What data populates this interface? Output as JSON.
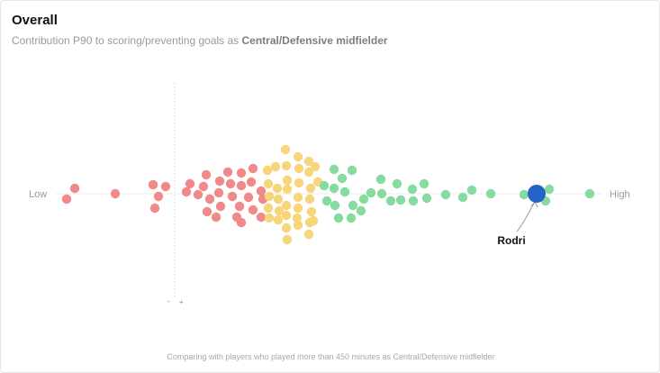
{
  "card": {
    "title": "Overall",
    "subtitle_prefix": "Contribution P90 to scoring/preventing goals as ",
    "subtitle_role": "Central/Defensive midfielder",
    "footer": "Comparing with players who played more than 450 minutes as Central/Defensive midfielder"
  },
  "chart_data": {
    "type": "scatter",
    "axis_labels": {
      "low": "Low",
      "high": "High"
    },
    "zero_marker": {
      "minus": "-",
      "plus": "+"
    },
    "colors": {
      "low": "#f08a8a",
      "mid": "#f7d57a",
      "high": "#86dba0",
      "highlight": "#2563c9"
    },
    "highlight": {
      "label": "Rodri",
      "x": 596,
      "y": 0
    },
    "series": [
      {
        "name": "low",
        "points": [
          [
            74,
            6
          ],
          [
            83,
            -6
          ],
          [
            128,
            0
          ],
          [
            170,
            -10
          ],
          [
            176,
            3
          ],
          [
            172,
            16
          ],
          [
            184,
            -8
          ],
          [
            207,
            -2
          ],
          [
            220,
            1
          ],
          [
            211,
            -11
          ],
          [
            229,
            -21
          ],
          [
            226,
            -8
          ],
          [
            233,
            6
          ],
          [
            230,
            20
          ],
          [
            244,
            -14
          ],
          [
            243,
            -1
          ],
          [
            245,
            14
          ],
          [
            240,
            26
          ],
          [
            253,
            -24
          ],
          [
            256,
            -11
          ],
          [
            258,
            3
          ],
          [
            263,
            26
          ],
          [
            268,
            -23
          ],
          [
            268,
            -9
          ],
          [
            268,
            32
          ],
          [
            266,
            14
          ],
          [
            276,
            4
          ],
          [
            281,
            -28
          ],
          [
            279,
            -13
          ],
          [
            281,
            18
          ],
          [
            290,
            -3
          ],
          [
            292,
            6
          ],
          [
            290,
            26
          ]
        ]
      },
      {
        "name": "mid",
        "points": [
          [
            297,
            -26
          ],
          [
            298,
            -11
          ],
          [
            299,
            3
          ],
          [
            298,
            16
          ],
          [
            299,
            27
          ],
          [
            308,
            -6
          ],
          [
            306,
            -30
          ],
          [
            309,
            6
          ],
          [
            310,
            19
          ],
          [
            309,
            29
          ],
          [
            317,
            -49
          ],
          [
            318,
            -31
          ],
          [
            319,
            -15
          ],
          [
            319,
            -5
          ],
          [
            318,
            13
          ],
          [
            318,
            24
          ],
          [
            318,
            38
          ],
          [
            319,
            51
          ],
          [
            331,
            -41
          ],
          [
            332,
            -28
          ],
          [
            332,
            -12
          ],
          [
            331,
            4
          ],
          [
            331,
            16
          ],
          [
            330,
            27
          ],
          [
            331,
            35
          ],
          [
            343,
            -36
          ],
          [
            343,
            -24
          ],
          [
            345,
            -6
          ],
          [
            344,
            6
          ],
          [
            346,
            20
          ],
          [
            344,
            32
          ],
          [
            343,
            45
          ],
          [
            348,
            30
          ],
          [
            350,
            -30
          ],
          [
            353,
            -13
          ]
        ]
      },
      {
        "name": "high",
        "points": [
          [
            360,
            -9
          ],
          [
            363,
            8
          ],
          [
            371,
            -27
          ],
          [
            371,
            -6
          ],
          [
            372,
            13
          ],
          [
            376,
            27
          ],
          [
            380,
            -17
          ],
          [
            383,
            -2
          ],
          [
            390,
            27
          ],
          [
            391,
            -26
          ],
          [
            392,
            13
          ],
          [
            401,
            19
          ],
          [
            404,
            6
          ],
          [
            412,
            -1
          ],
          [
            423,
            -16
          ],
          [
            424,
            0
          ],
          [
            434,
            8
          ],
          [
            441,
            -11
          ],
          [
            445,
            7
          ],
          [
            458,
            -5
          ],
          [
            459,
            8
          ],
          [
            471,
            -11
          ],
          [
            474,
            5
          ],
          [
            495,
            1
          ],
          [
            514,
            4
          ],
          [
            524,
            -4
          ],
          [
            545,
            0
          ],
          [
            582,
            1
          ],
          [
            610,
            -5
          ],
          [
            606,
            8
          ],
          [
            655,
            0
          ]
        ]
      }
    ]
  }
}
